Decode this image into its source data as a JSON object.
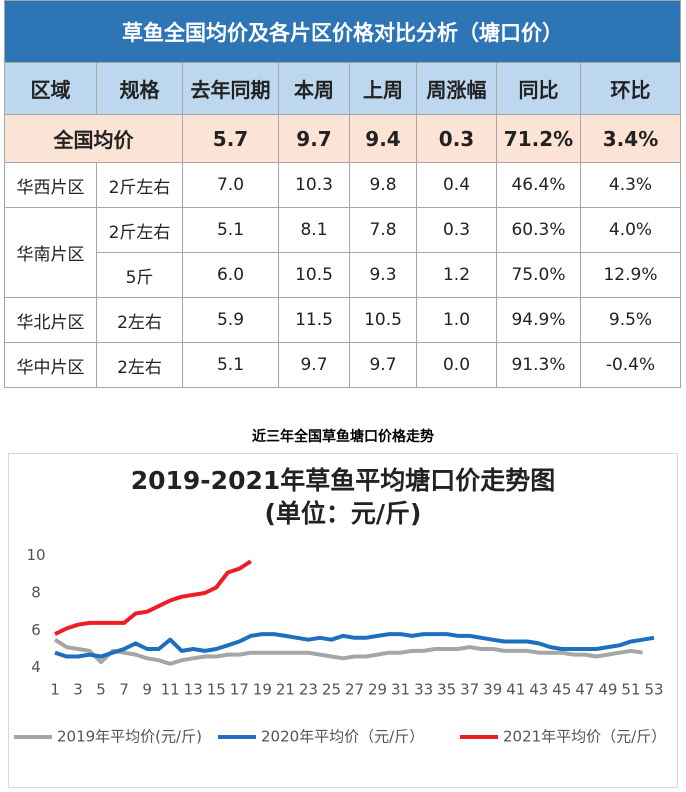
{
  "table": {
    "title": "草鱼全国均价及各片区价格对比分析（塘口价）",
    "headers": [
      "区域",
      "规格",
      "去年同期",
      "本周",
      "上周",
      "周涨幅",
      "同比",
      "环比"
    ],
    "national": {
      "label": "全国均价",
      "values": [
        "5.7",
        "9.7",
        "9.4",
        "0.3",
        "71.2%",
        "3.4%"
      ]
    },
    "rows": [
      [
        "华西片区",
        "2斤左右",
        "7.0",
        "10.3",
        "9.8",
        "0.4",
        "46.4%",
        "4.3%"
      ],
      [
        "华南片区",
        "2斤左右",
        "5.1",
        "8.1",
        "7.8",
        "0.3",
        "60.3%",
        "4.0%"
      ],
      [
        "5斤",
        "6.0",
        "10.5",
        "9.3",
        "1.2",
        "75.0%",
        "12.9%"
      ],
      [
        "华北片区",
        "2左右",
        "5.9",
        "11.5",
        "10.5",
        "1.0",
        "94.9%",
        "9.5%"
      ],
      [
        "华中片区",
        "2左右",
        "5.1",
        "9.7",
        "9.7",
        "0.0",
        "91.3%",
        "-0.4%"
      ]
    ]
  },
  "caption": "近三年全国草鱼塘口价格走势",
  "chart_data": {
    "type": "line",
    "title": "2019-2021年草鱼平均塘口价走势图",
    "subtitle": "(单位：元/斤)",
    "x": [
      1,
      2,
      3,
      4,
      5,
      6,
      7,
      8,
      9,
      10,
      11,
      12,
      13,
      14,
      15,
      16,
      17,
      18,
      19,
      20,
      21,
      22,
      23,
      24,
      25,
      26,
      27,
      28,
      29,
      30,
      31,
      32,
      33,
      34,
      35,
      36,
      37,
      38,
      39,
      40,
      41,
      42,
      43,
      44,
      45,
      46,
      47,
      48,
      49,
      50,
      51,
      52,
      53
    ],
    "xlim": [
      1,
      53
    ],
    "xticks": [
      1,
      3,
      5,
      7,
      9,
      11,
      13,
      15,
      17,
      19,
      21,
      23,
      25,
      27,
      29,
      31,
      33,
      35,
      37,
      39,
      41,
      43,
      45,
      47,
      49,
      51,
      53
    ],
    "ylim": [
      3.5,
      11
    ],
    "yticks": [
      4,
      6,
      8,
      10
    ],
    "series": [
      {
        "name": "2019年平均价(元/斤)",
        "color": "#a6a6a6",
        "values": [
          5.5,
          5.1,
          5.0,
          4.9,
          4.3,
          4.9,
          4.8,
          4.7,
          4.5,
          4.4,
          4.2,
          4.4,
          4.5,
          4.6,
          4.6,
          4.7,
          4.7,
          4.8,
          4.8,
          4.8,
          4.8,
          4.8,
          4.8,
          4.7,
          4.6,
          4.5,
          4.6,
          4.6,
          4.7,
          4.8,
          4.8,
          4.9,
          4.9,
          5.0,
          5.0,
          5.0,
          5.1,
          5.0,
          5.0,
          4.9,
          4.9,
          4.9,
          4.8,
          4.8,
          4.8,
          4.7,
          4.7,
          4.6,
          4.7,
          4.8,
          4.9,
          4.8,
          null
        ]
      },
      {
        "name": "2020年平均价（元/斤）",
        "color": "#1f6fbf",
        "values": [
          4.8,
          4.6,
          4.6,
          4.7,
          4.6,
          4.8,
          5.0,
          5.3,
          5.0,
          5.0,
          5.5,
          4.9,
          5.0,
          4.9,
          5.0,
          5.2,
          5.4,
          5.7,
          5.8,
          5.8,
          5.7,
          5.6,
          5.5,
          5.6,
          5.5,
          5.7,
          5.6,
          5.6,
          5.7,
          5.8,
          5.8,
          5.7,
          5.8,
          5.8,
          5.8,
          5.7,
          5.7,
          5.6,
          5.5,
          5.4,
          5.4,
          5.4,
          5.3,
          5.1,
          5.0,
          5.0,
          5.0,
          5.0,
          5.1,
          5.2,
          5.4,
          5.5,
          5.6
        ]
      },
      {
        "name": "2021年平均价（元/斤）",
        "color": "#ee1c25",
        "values": [
          5.8,
          6.1,
          6.3,
          6.4,
          6.4,
          6.4,
          6.4,
          6.9,
          7.0,
          7.3,
          7.6,
          7.8,
          7.9,
          8.0,
          8.3,
          9.1,
          9.3,
          9.7,
          null,
          null,
          null,
          null,
          null,
          null,
          null,
          null,
          null,
          null,
          null,
          null,
          null,
          null,
          null,
          null,
          null,
          null,
          null,
          null,
          null,
          null,
          null,
          null,
          null,
          null,
          null,
          null,
          null,
          null,
          null,
          null,
          null,
          null,
          null
        ]
      }
    ]
  }
}
